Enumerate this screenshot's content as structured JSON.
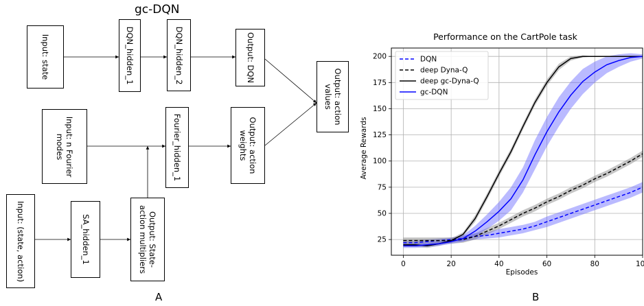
{
  "diagram": {
    "title": "gc-DQN",
    "panel_label": "A",
    "nodes": {
      "input_state": "Input: state",
      "dqn_hidden_1": "DQN_hidden_1",
      "dqn_hidden_2": "DQN_hidden_2",
      "output_dqn": "Output: DQN",
      "output_action_values": "Output: action\nvalues",
      "input_fourier": "Input: n Fourier\nmodes",
      "fourier_hidden_1": "Fourier_hidden_1",
      "output_action_weights": "Output: action\nweights",
      "input_state_action": "Input: (state, action)",
      "sa_hidden_1": "SA_hidden_1",
      "output_multipliers": "Output: State-\naction multipliers"
    }
  },
  "chart_data": {
    "type": "line",
    "panel_label": "B",
    "title": "Performance on the CartPole task",
    "xlabel": "Episodes",
    "ylabel": "Average Rewards",
    "xlim": [
      -5,
      100
    ],
    "ylim": [
      10,
      208
    ],
    "xticks": [
      0,
      20,
      40,
      60,
      80,
      100
    ],
    "yticks": [
      25,
      50,
      75,
      100,
      125,
      150,
      175,
      200
    ],
    "xtick_labels": [
      "0",
      "20",
      "40",
      "60",
      "80",
      "100"
    ],
    "ytick_labels": [
      "25",
      "50",
      "75",
      "100",
      "125",
      "150",
      "175",
      "200"
    ],
    "grid": true,
    "legend_position": "top-left",
    "x": [
      0,
      5,
      10,
      15,
      20,
      25,
      30,
      35,
      40,
      45,
      50,
      55,
      60,
      65,
      70,
      75,
      80,
      85,
      90,
      95,
      100
    ],
    "series": [
      {
        "name": "DQN",
        "color": "#0000ff",
        "style": "dashed",
        "band_color": "#6666ff",
        "values": [
          22,
          22,
          23,
          24,
          25,
          26,
          28,
          29,
          31,
          33,
          35,
          38,
          42,
          46,
          50,
          54,
          58,
          62,
          66,
          70,
          75
        ],
        "band_half_width": [
          2,
          2,
          2,
          2,
          2,
          3,
          3,
          3,
          4,
          4,
          4,
          4,
          5,
          5,
          5,
          5,
          5,
          5,
          5,
          5,
          5
        ]
      },
      {
        "name": "deep Dyna-Q",
        "color": "#000000",
        "style": "dashed",
        "band_color": "#808080",
        "values": [
          24,
          24,
          24,
          24,
          24,
          25,
          28,
          33,
          38,
          44,
          50,
          55,
          61,
          66,
          72,
          77,
          83,
          88,
          94,
          100,
          107
        ],
        "band_half_width": [
          3,
          3,
          3,
          3,
          3,
          3,
          3,
          3,
          3,
          3,
          3,
          3,
          3,
          3,
          3,
          3,
          3,
          3,
          3,
          3,
          3
        ]
      },
      {
        "name": "deep gc-Dyna-Q",
        "color": "#000000",
        "style": "solid",
        "band_color": "#808080",
        "values": [
          20,
          20,
          19,
          21,
          24,
          30,
          45,
          66,
          88,
          109,
          133,
          156,
          175,
          190,
          198,
          200,
          200,
          200,
          200,
          200,
          200
        ],
        "band_half_width": [
          2,
          2,
          2,
          2,
          2,
          2,
          3,
          3,
          3,
          3,
          3,
          3,
          3,
          3,
          2,
          1,
          0,
          0,
          0,
          0,
          0
        ]
      },
      {
        "name": "gc-DQN",
        "color": "#0000ff",
        "style": "solid",
        "band_color": "#6666ff",
        "values": [
          19,
          19,
          20,
          21,
          23,
          26,
          33,
          42,
          52,
          64,
          82,
          106,
          128,
          147,
          163,
          176,
          185,
          192,
          196,
          199,
          200
        ],
        "band_half_width": [
          2,
          2,
          2,
          2,
          2,
          3,
          5,
          7,
          9,
          11,
          12,
          14,
          14,
          14,
          13,
          12,
          10,
          8,
          6,
          4,
          2
        ]
      }
    ]
  }
}
